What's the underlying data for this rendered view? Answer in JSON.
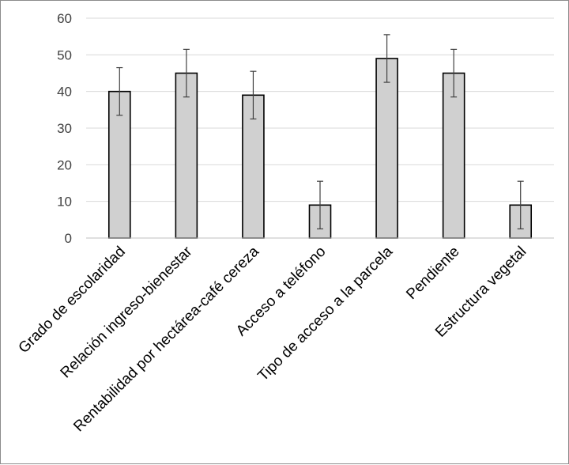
{
  "chart_data": {
    "type": "bar",
    "title": "",
    "xlabel": "",
    "ylabel": "",
    "categories": [
      "Grado de escolaridad",
      "Relación ingreso-bienestar",
      "Rentabilidad por hectárea-café cereza",
      "Acceso a teléfono",
      "Tipo de acceso a la parcela",
      "Pendiente",
      "Estructura vegetal"
    ],
    "series": [
      {
        "values": [
          40,
          45,
          39,
          9,
          49,
          45,
          9
        ],
        "error": [
          6.5,
          6.5,
          6.5,
          6.5,
          6.5,
          6.5,
          6.5
        ]
      }
    ],
    "ylim": [
      0,
      60
    ],
    "yticks": [
      "0",
      "10",
      "20",
      "30",
      "40",
      "50",
      "60"
    ],
    "grid": true,
    "legend": "none",
    "colors": {
      "bar": "#d0d0d0",
      "bar_edge": "#000000",
      "grid": "#d9d9d9",
      "error": "#404040"
    }
  }
}
